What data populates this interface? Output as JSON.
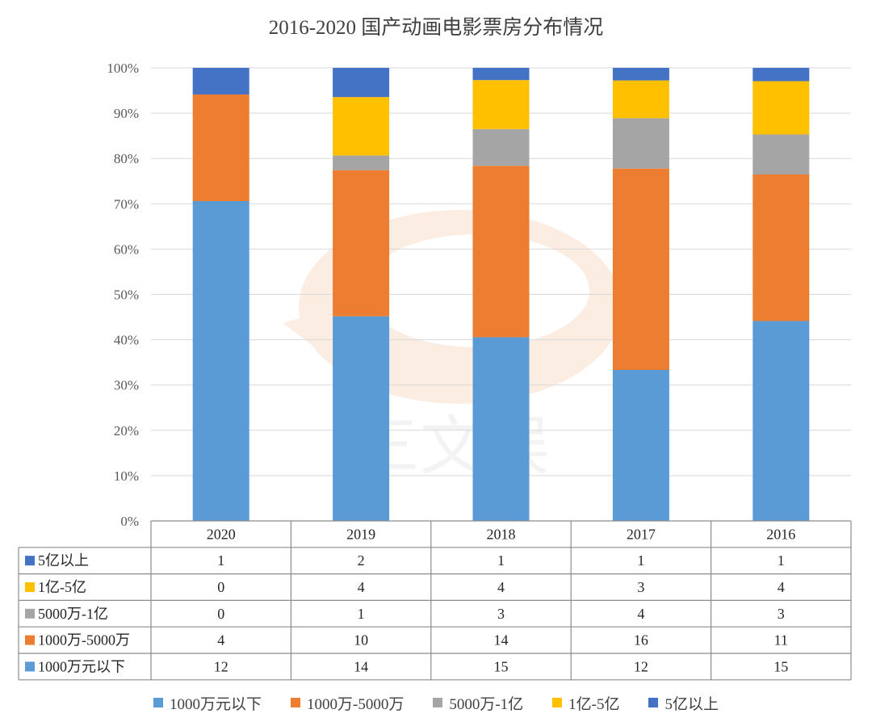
{
  "colors": {
    "s1000w_below": "#5B9BD5",
    "s1000_5000w": "#ED7D31",
    "s5000w_1yi": "#A5A5A5",
    "s1_5yi": "#FFC000",
    "s5yi_above": "#4472C4",
    "grid": "#D9D9D9",
    "table_border": "#8C8C8C"
  },
  "chart_data": {
    "type": "bar",
    "stacked": "percent",
    "title": "2016-2020 国产动画电影票房分布情况",
    "categories": [
      "2020",
      "2019",
      "2018",
      "2017",
      "2016"
    ],
    "yticks": [
      "0%",
      "10%",
      "20%",
      "30%",
      "40%",
      "50%",
      "60%",
      "70%",
      "80%",
      "90%",
      "100%"
    ],
    "ylim": [
      0,
      100
    ],
    "series": [
      {
        "name": "1000万元以下",
        "color_key": "s1000w_below",
        "values": [
          12,
          14,
          15,
          12,
          15
        ]
      },
      {
        "name": "1000万-5000万",
        "color_key": "s1000_5000w",
        "values": [
          4,
          10,
          14,
          16,
          11
        ]
      },
      {
        "name": "5000万-1亿",
        "color_key": "s5000w_1yi",
        "values": [
          0,
          1,
          3,
          4,
          3
        ]
      },
      {
        "name": "1亿-5亿",
        "color_key": "s1_5yi",
        "values": [
          0,
          4,
          4,
          3,
          4
        ]
      },
      {
        "name": "5亿以上",
        "color_key": "s5yi_above",
        "values": [
          1,
          2,
          1,
          1,
          1
        ]
      }
    ],
    "legend_position": "bottom",
    "grid": true
  },
  "watermark": {
    "text": "三文娱"
  }
}
